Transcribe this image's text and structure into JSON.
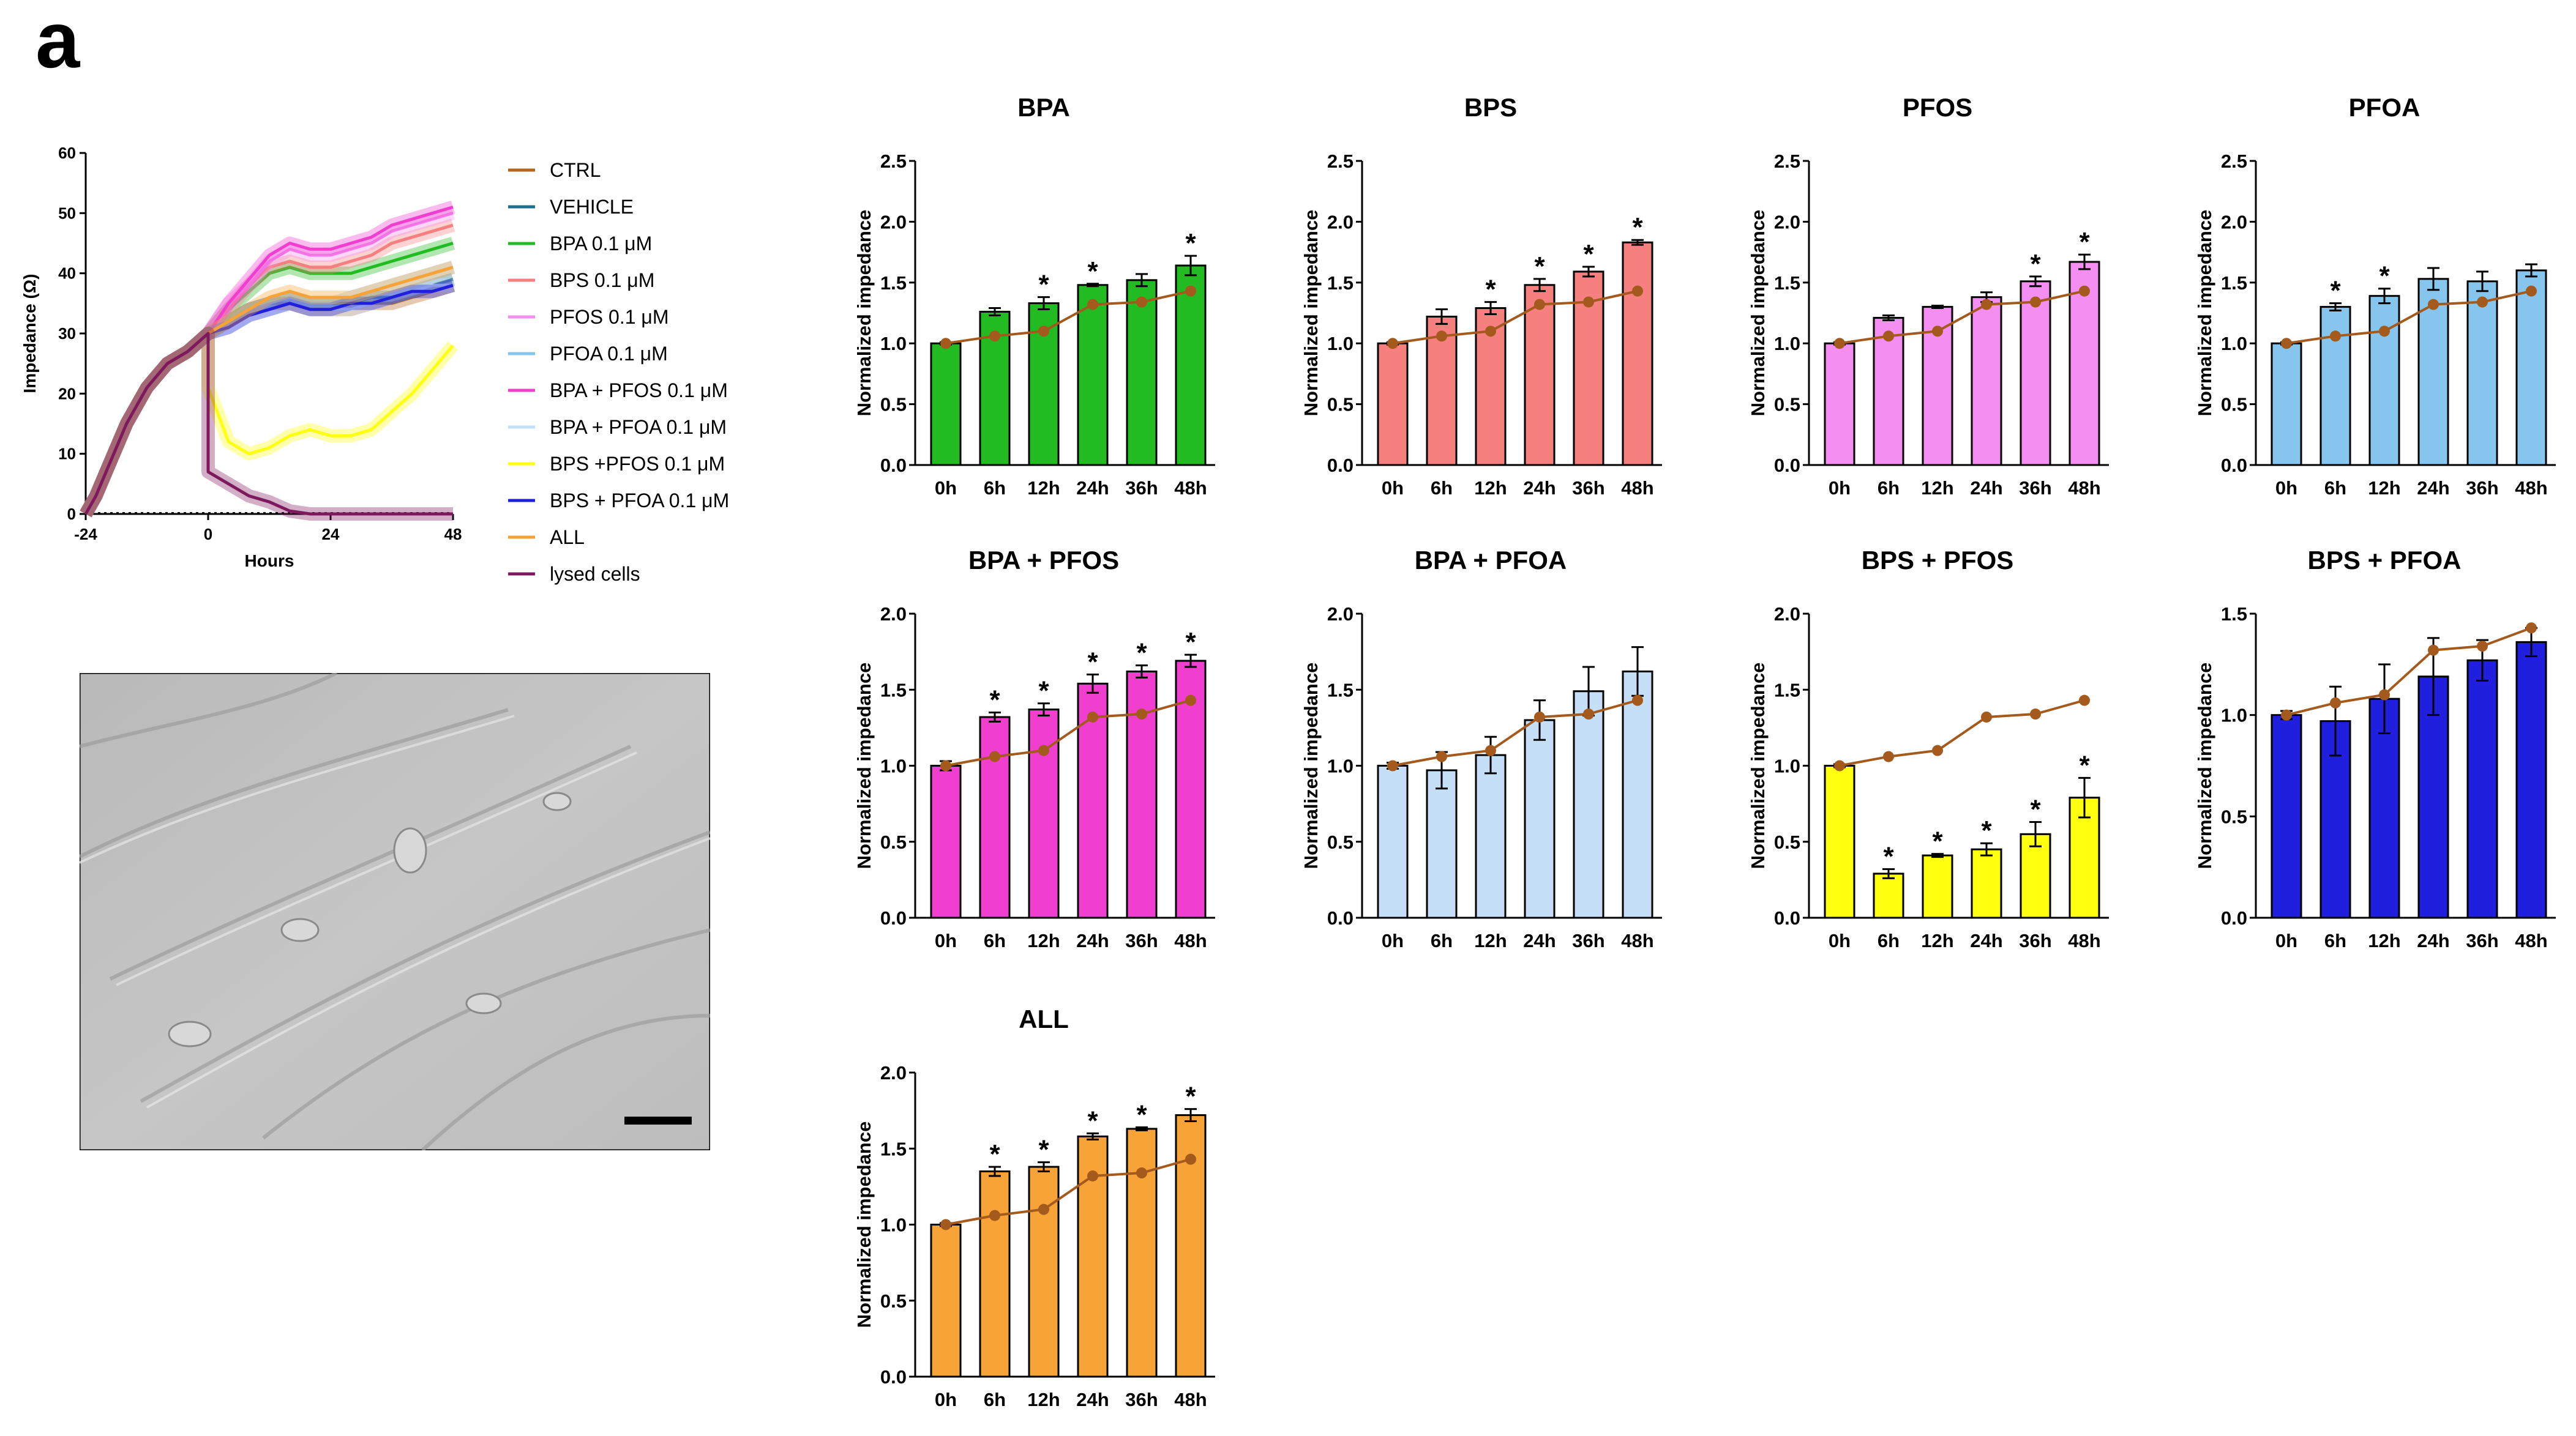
{
  "panel_label": "a",
  "colors": {
    "CTRL": "#b5651d",
    "VEHICLE": "#1f6e8c",
    "BPA": "#22bb22",
    "BPS": "#f67f7f",
    "PFOS": "#f48ef0",
    "PFOA": "#86c6ee",
    "BPA_PFOS": "#f03fcf",
    "BPA_PFOA": "#c5dff6",
    "BPS_PFOS": "#ffff10",
    "BPS_PFOA": "#1f1fdd",
    "ALL": "#f8a337",
    "lysed": "#7d1a5e",
    "ctrl_line": "#a35a1c"
  },
  "chart_data": [
    {
      "type": "line",
      "id": "impedance-timecourse",
      "title": "",
      "xlabel": "Hours",
      "ylabel": "Impedance (Ω)",
      "xlim": [
        -24,
        48
      ],
      "ylim": [
        0,
        60
      ],
      "xticks": [
        "-24",
        "0",
        "24",
        "48"
      ],
      "yticks": [
        "0",
        "10",
        "20",
        "30",
        "40",
        "50",
        "60"
      ],
      "legend": [
        "CTRL",
        "VEHICLE",
        "BPA 0.1 μM",
        "BPS 0.1 μM",
        "PFOS 0.1 μM",
        "PFOA 0.1 μM",
        " BPA + PFOS 0.1 μM",
        "BPA + PFOA 0.1 μM",
        "BPS +PFOS 0.1 μM",
        "BPS + PFOA 0.1 μM",
        "ALL",
        "lysed cells"
      ],
      "x": [
        -24,
        -22,
        -20,
        -18,
        -16,
        -14,
        -12,
        -10,
        -8,
        -6,
        -4,
        -2,
        0,
        4,
        8,
        12,
        16,
        20,
        24,
        28,
        32,
        36,
        40,
        44,
        48
      ],
      "baseline": [
        0,
        3,
        7,
        11,
        15,
        18,
        21,
        23,
        25,
        26,
        27,
        28.5,
        30
      ],
      "series": [
        {
          "name": "CTRL",
          "key": "CTRL",
          "after": [
            30,
            32,
            34,
            35,
            35,
            34,
            34,
            34,
            35,
            35,
            36,
            37,
            38
          ]
        },
        {
          "name": "VEHICLE",
          "key": "VEHICLE",
          "after": [
            30,
            32,
            34,
            35,
            36,
            35,
            35,
            35,
            36,
            36,
            37,
            38,
            39
          ]
        },
        {
          "name": "BPA 0.1 μM",
          "key": "BPA",
          "after": [
            30,
            34,
            37,
            40,
            41,
            40,
            40,
            40,
            41,
            42,
            43,
            44,
            45
          ]
        },
        {
          "name": "BPS 0.1 μM",
          "key": "BPS",
          "after": [
            30,
            34,
            38,
            41,
            42,
            41,
            41,
            42,
            43,
            45,
            46,
            47,
            48
          ]
        },
        {
          "name": "PFOS 0.1 μM",
          "key": "PFOS",
          "after": [
            30,
            35,
            38,
            42,
            44,
            43,
            43,
            44,
            45,
            47,
            48,
            49,
            50
          ]
        },
        {
          "name": "PFOA 0.1 μM",
          "key": "PFOA",
          "after": [
            30,
            32,
            34,
            35,
            36,
            35,
            35,
            36,
            37,
            38,
            39,
            40,
            41
          ]
        },
        {
          "name": " BPA + PFOS 0.1 μM",
          "key": "BPA_PFOS",
          "after": [
            30,
            35,
            39,
            43,
            45,
            44,
            44,
            45,
            46,
            48,
            49,
            50,
            51
          ]
        },
        {
          "name": "BPA + PFOA 0.1 μM",
          "key": "BPA_PFOA",
          "after": [
            30,
            31,
            33,
            34,
            35,
            34,
            34,
            34,
            35,
            36,
            37,
            38,
            38
          ]
        },
        {
          "name": "BPS +PFOS 0.1 μM",
          "key": "BPS_PFOS",
          "after": [
            21,
            12,
            10,
            11,
            13,
            14,
            13,
            13,
            14,
            17,
            20,
            24,
            28
          ]
        },
        {
          "name": "BPS + PFOA 0.1 μM",
          "key": "BPS_PFOA",
          "after": [
            30,
            31,
            33,
            34,
            35,
            34,
            34,
            35,
            35,
            36,
            37,
            37,
            38
          ]
        },
        {
          "name": "ALL",
          "key": "ALL",
          "after": [
            30,
            32,
            34,
            36,
            37,
            36,
            36,
            36,
            37,
            38,
            39,
            40,
            41
          ]
        },
        {
          "name": "lysed cells",
          "key": "lysed",
          "after": [
            7,
            5,
            3,
            2,
            0.5,
            0,
            0,
            0,
            0,
            0,
            0,
            0,
            0
          ]
        }
      ]
    },
    {
      "type": "bar",
      "id": "bpa",
      "title": "BPA",
      "ylabel": "Normalized impedance",
      "color_key": "BPA",
      "categories": [
        "0h",
        "6h",
        "12h",
        "24h",
        "36h",
        "48h"
      ],
      "values": [
        1.0,
        1.26,
        1.33,
        1.48,
        1.52,
        1.64
      ],
      "errors": [
        0.01,
        0.03,
        0.05,
        0.01,
        0.05,
        0.08
      ],
      "significant": [
        false,
        false,
        true,
        true,
        false,
        true
      ],
      "ylim": [
        0,
        2.5
      ],
      "yticks": [
        "0.0",
        "0.5",
        "1.0",
        "1.5",
        "2.0",
        "2.5"
      ],
      "control_values": [
        1.0,
        1.06,
        1.1,
        1.32,
        1.34,
        1.43
      ]
    },
    {
      "type": "bar",
      "id": "bps",
      "title": "BPS",
      "ylabel": "Normalized impedance",
      "color_key": "BPS",
      "categories": [
        "0h",
        "6h",
        "12h",
        "24h",
        "36h",
        "48h"
      ],
      "values": [
        1.0,
        1.22,
        1.29,
        1.48,
        1.59,
        1.83
      ],
      "errors": [
        0.01,
        0.06,
        0.05,
        0.05,
        0.04,
        0.02
      ],
      "significant": [
        false,
        false,
        true,
        true,
        true,
        true
      ],
      "ylim": [
        0,
        2.5
      ],
      "yticks": [
        "0.0",
        "0.5",
        "1.0",
        "1.5",
        "2.0",
        "2.5"
      ],
      "control_values": [
        1.0,
        1.06,
        1.1,
        1.32,
        1.34,
        1.43
      ]
    },
    {
      "type": "bar",
      "id": "pfos",
      "title": "PFOS",
      "ylabel": "Normalized impedance",
      "color_key": "PFOS",
      "categories": [
        "0h",
        "6h",
        "12h",
        "24h",
        "36h",
        "48h"
      ],
      "values": [
        1.0,
        1.21,
        1.3,
        1.38,
        1.51,
        1.67
      ],
      "errors": [
        0.01,
        0.02,
        0.01,
        0.04,
        0.04,
        0.06
      ],
      "significant": [
        false,
        false,
        false,
        false,
        true,
        true
      ],
      "ylim": [
        0,
        2.5
      ],
      "yticks": [
        "0.0",
        "0.5",
        "1.0",
        "1.5",
        "2.0",
        "2.5"
      ],
      "control_values": [
        1.0,
        1.06,
        1.1,
        1.32,
        1.34,
        1.43
      ]
    },
    {
      "type": "bar",
      "id": "pfoa",
      "title": "PFOA",
      "ylabel": "Normalized impedance",
      "color_key": "PFOA",
      "categories": [
        "0h",
        "6h",
        "12h",
        "24h",
        "36h",
        "48h"
      ],
      "values": [
        1.0,
        1.3,
        1.39,
        1.53,
        1.51,
        1.6
      ],
      "errors": [
        0.01,
        0.03,
        0.06,
        0.09,
        0.08,
        0.05
      ],
      "significant": [
        false,
        true,
        true,
        false,
        false,
        false
      ],
      "ylim": [
        0,
        2.5
      ],
      "yticks": [
        "0.0",
        "0.5",
        "1.0",
        "1.5",
        "2.0",
        "2.5"
      ],
      "control_values": [
        1.0,
        1.06,
        1.1,
        1.32,
        1.34,
        1.43
      ]
    },
    {
      "type": "bar",
      "id": "bpa-pfos",
      "title": "BPA + PFOS",
      "ylabel": "Normalized impedance",
      "color_key": "BPA_PFOS",
      "categories": [
        "0h",
        "6h",
        "12h",
        "24h",
        "36h",
        "48h"
      ],
      "values": [
        1.0,
        1.32,
        1.37,
        1.54,
        1.62,
        1.69
      ],
      "errors": [
        0.03,
        0.03,
        0.04,
        0.06,
        0.04,
        0.04
      ],
      "significant": [
        false,
        true,
        true,
        true,
        true,
        true
      ],
      "ylim": [
        0,
        2.0
      ],
      "yticks": [
        "0.0",
        "0.5",
        "1.0",
        "1.5",
        "2.0"
      ],
      "control_values": [
        1.0,
        1.06,
        1.1,
        1.32,
        1.34,
        1.43
      ]
    },
    {
      "type": "bar",
      "id": "bpa-pfoa",
      "title": "BPA + PFOA",
      "ylabel": "Normalized impedance",
      "color_key": "BPA_PFOA",
      "categories": [
        "0h",
        "6h",
        "12h",
        "24h",
        "36h",
        "48h"
      ],
      "values": [
        1.0,
        0.97,
        1.07,
        1.3,
        1.49,
        1.62
      ],
      "errors": [
        0.02,
        0.12,
        0.12,
        0.13,
        0.16,
        0.16
      ],
      "significant": [
        false,
        false,
        false,
        false,
        false,
        false
      ],
      "ylim": [
        0,
        2.0
      ],
      "yticks": [
        "0.0",
        "0.5",
        "1.0",
        "1.5",
        "2.0"
      ],
      "control_values": [
        1.0,
        1.06,
        1.1,
        1.32,
        1.34,
        1.43
      ]
    },
    {
      "type": "bar",
      "id": "bps-pfos",
      "title": "BPS + PFOS",
      "ylabel": "Normalized impedance",
      "color_key": "BPS_PFOS",
      "categories": [
        "0h",
        "6h",
        "12h",
        "24h",
        "36h",
        "48h"
      ],
      "values": [
        1.0,
        0.29,
        0.41,
        0.45,
        0.55,
        0.79
      ],
      "errors": [
        0.01,
        0.03,
        0.01,
        0.04,
        0.08,
        0.13
      ],
      "significant": [
        false,
        true,
        true,
        true,
        true,
        true
      ],
      "ylim": [
        0,
        2.0
      ],
      "yticks": [
        "0.0",
        "0.5",
        "1.0",
        "1.5",
        "2.0"
      ],
      "control_values": [
        1.0,
        1.06,
        1.1,
        1.32,
        1.34,
        1.43
      ]
    },
    {
      "type": "bar",
      "id": "bps-pfoa",
      "title": "BPS + PFOA",
      "ylabel": "Normalized impedance",
      "color_key": "BPS_PFOA",
      "categories": [
        "0h",
        "6h",
        "12h",
        "24h",
        "36h",
        "48h"
      ],
      "values": [
        1.0,
        0.97,
        1.08,
        1.19,
        1.27,
        1.36
      ],
      "errors": [
        0.02,
        0.17,
        0.17,
        0.19,
        0.1,
        0.07
      ],
      "significant": [
        false,
        false,
        false,
        false,
        false,
        false
      ],
      "ylim": [
        0,
        1.5
      ],
      "yticks": [
        "0.0",
        "0.5",
        "1.0",
        "1.5"
      ],
      "control_values": [
        1.0,
        1.06,
        1.1,
        1.32,
        1.34,
        1.43
      ]
    },
    {
      "type": "bar",
      "id": "all",
      "title": "ALL",
      "ylabel": "Normalized impedance",
      "color_key": "ALL",
      "categories": [
        "0h",
        "6h",
        "12h",
        "24h",
        "36h",
        "48h"
      ],
      "values": [
        1.0,
        1.35,
        1.38,
        1.58,
        1.63,
        1.72
      ],
      "errors": [
        0.01,
        0.03,
        0.03,
        0.02,
        0.01,
        0.04
      ],
      "significant": [
        false,
        true,
        true,
        true,
        true,
        true
      ],
      "ylim": [
        0,
        2.0
      ],
      "yticks": [
        "0.0",
        "0.5",
        "1.0",
        "1.5",
        "2.0"
      ],
      "control_values": [
        1.0,
        1.06,
        1.1,
        1.32,
        1.34,
        1.43
      ]
    }
  ]
}
